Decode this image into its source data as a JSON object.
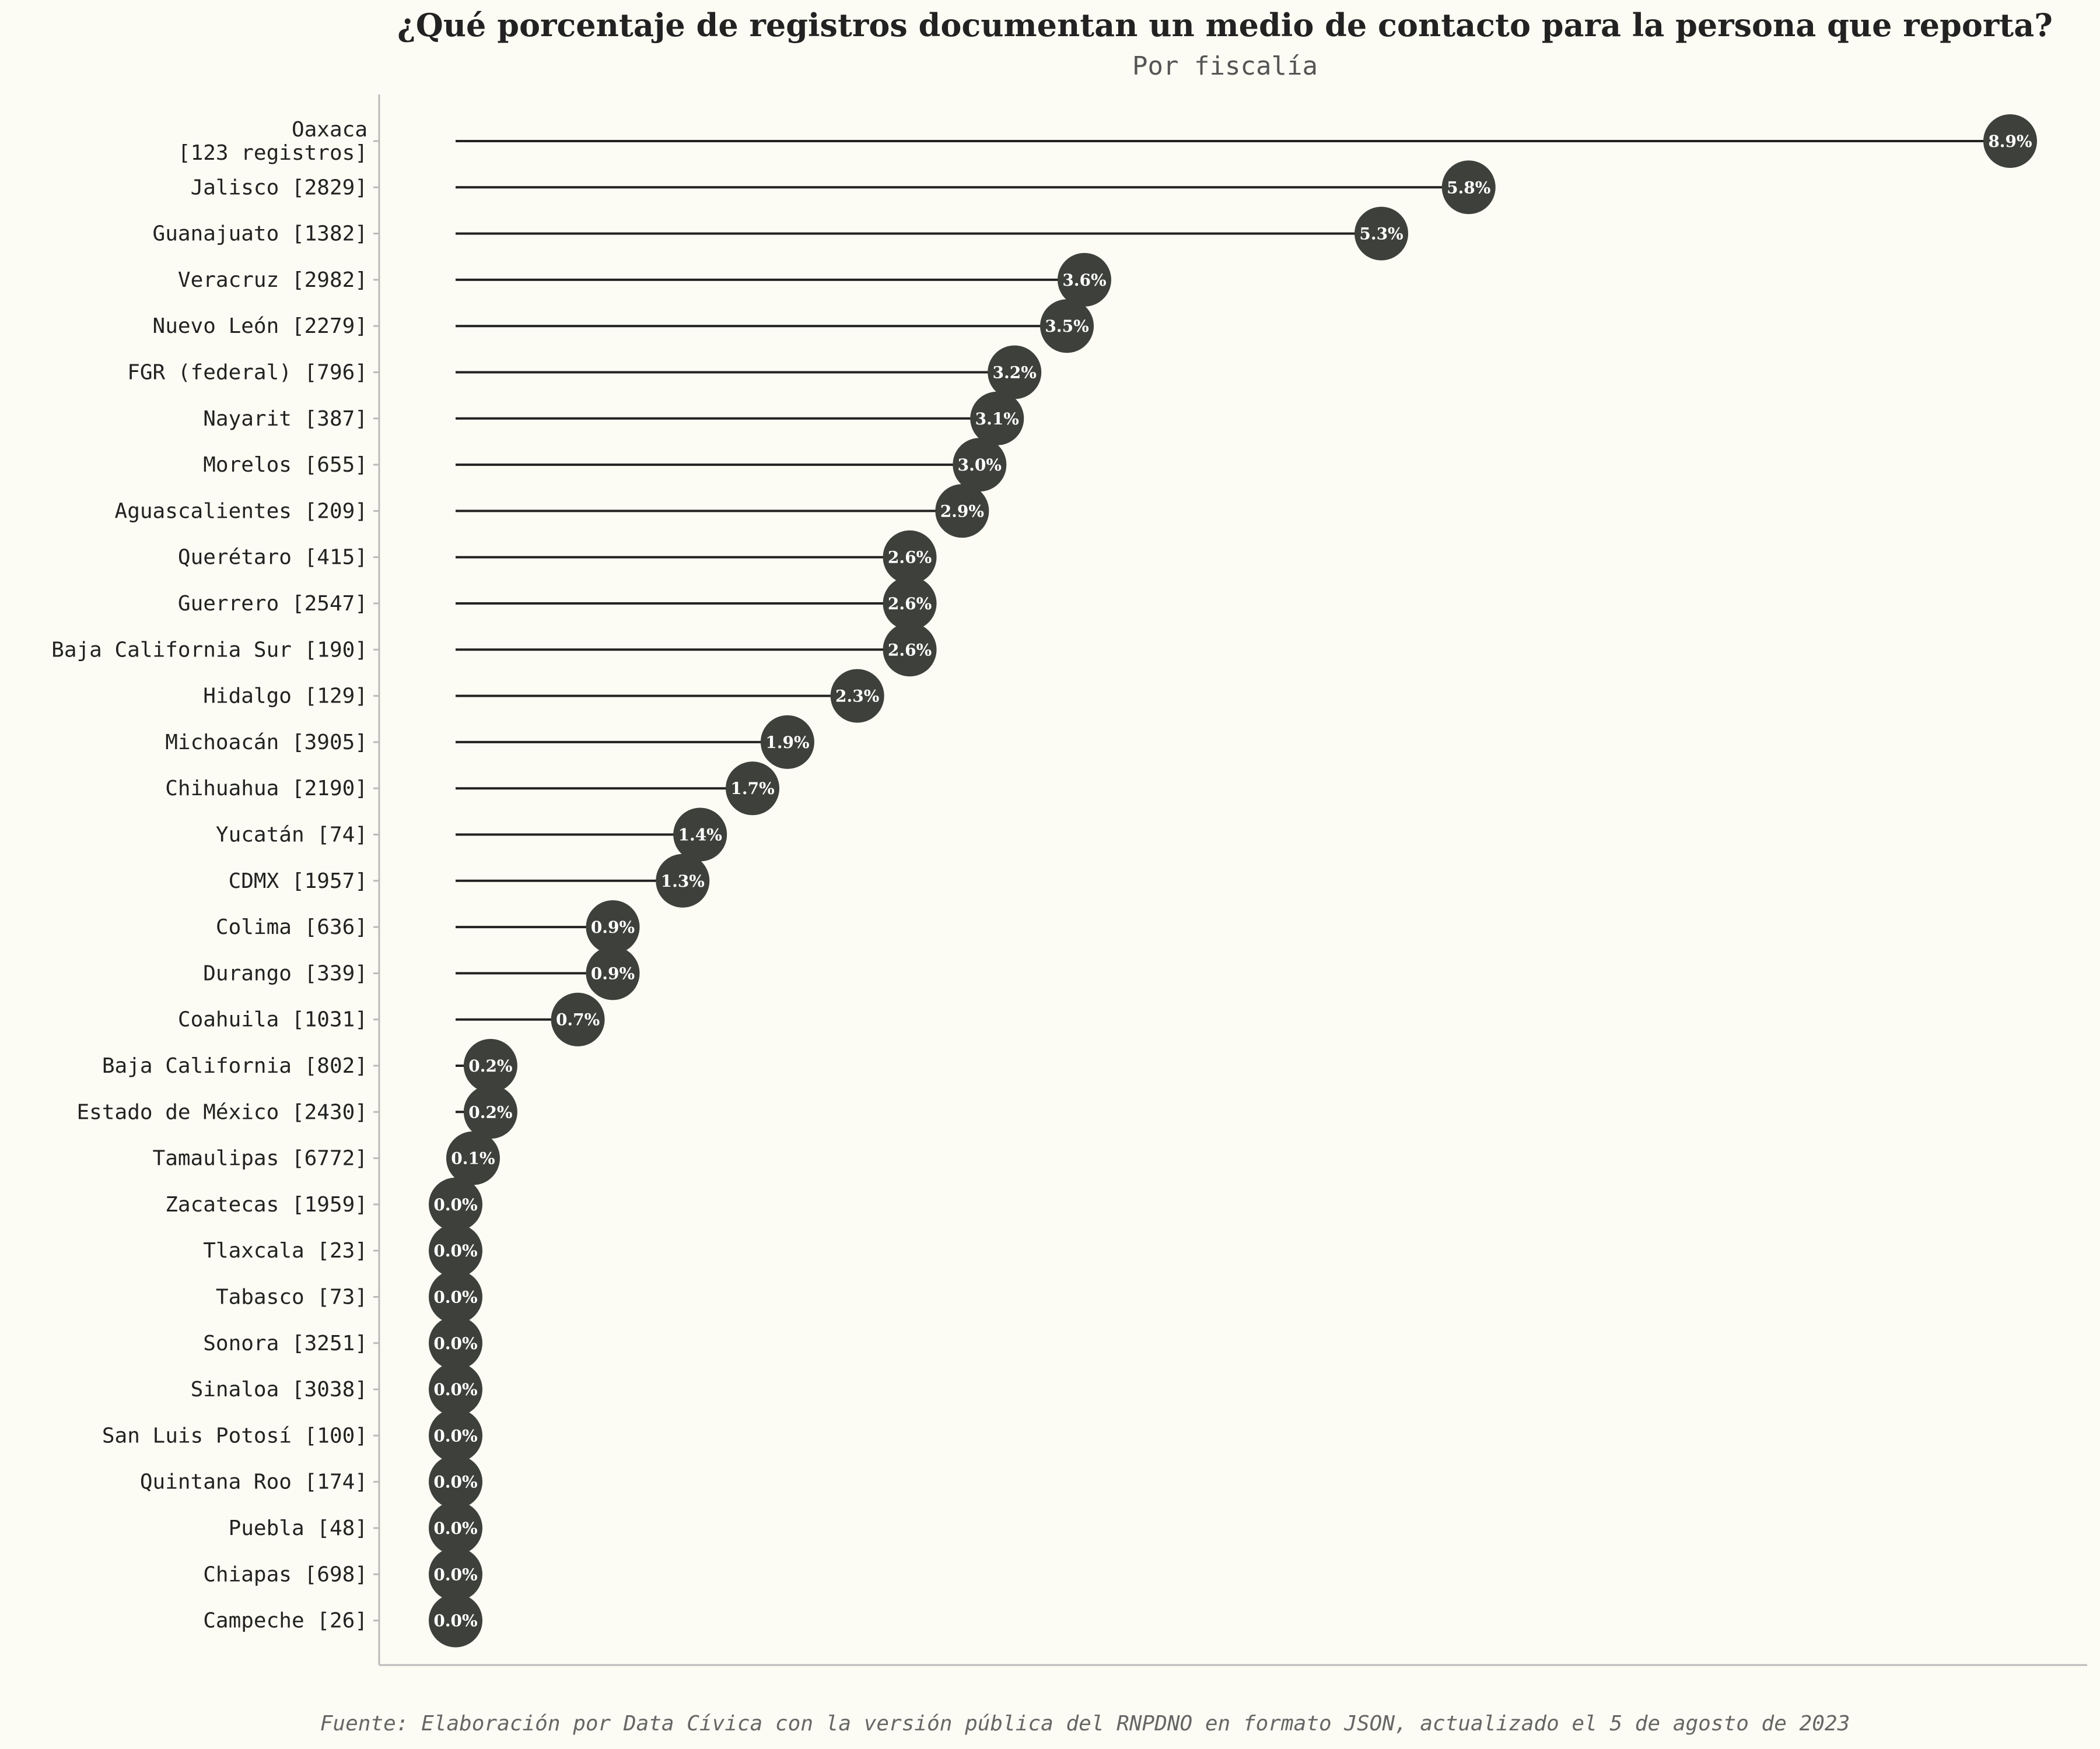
{
  "chart_data": {
    "type": "lollipop",
    "title": "¿Qué porcentaje de registros documentan un medio de contacto para la persona que reporta?",
    "subtitle": "Por fiscalía",
    "caption": "Fuente: Elaboración por Data Cívica con la versión pública del RNPDNO en formato JSON, actualizado el 5 de agosto de 2023",
    "xlim": [
      0,
      8.9
    ],
    "grid": false,
    "colors": {
      "background": "#fcfcf4",
      "marker": "#3e403c",
      "line": "#222222",
      "axis": "#bbbbbb"
    },
    "categories": [
      [
        "Oaxaca",
        "[123 registros]"
      ],
      [
        "Jalisco [2829]"
      ],
      [
        "Guanajuato [1382]"
      ],
      [
        "Veracruz [2982]"
      ],
      [
        "Nuevo León [2279]"
      ],
      [
        "FGR (federal) [796]"
      ],
      [
        "Nayarit [387]"
      ],
      [
        "Morelos [655]"
      ],
      [
        "Aguascalientes [209]"
      ],
      [
        "Querétaro [415]"
      ],
      [
        "Guerrero [2547]"
      ],
      [
        "Baja California Sur [190]"
      ],
      [
        "Hidalgo [129]"
      ],
      [
        "Michoacán [3905]"
      ],
      [
        "Chihuahua [2190]"
      ],
      [
        "Yucatán [74]"
      ],
      [
        "CDMX [1957]"
      ],
      [
        "Colima [636]"
      ],
      [
        "Durango [339]"
      ],
      [
        "Coahuila [1031]"
      ],
      [
        "Baja California [802]"
      ],
      [
        "Estado de México [2430]"
      ],
      [
        "Tamaulipas [6772]"
      ],
      [
        "Zacatecas [1959]"
      ],
      [
        "Tlaxcala [23]"
      ],
      [
        "Tabasco [73]"
      ],
      [
        "Sonora [3251]"
      ],
      [
        "Sinaloa [3038]"
      ],
      [
        "San Luis Potosí [100]"
      ],
      [
        "Quintana Roo [174]"
      ],
      [
        "Puebla [48]"
      ],
      [
        "Chiapas [698]"
      ],
      [
        "Campeche [26]"
      ]
    ],
    "values": [
      8.9,
      5.8,
      5.3,
      3.6,
      3.5,
      3.2,
      3.1,
      3.0,
      2.9,
      2.6,
      2.6,
      2.6,
      2.3,
      1.9,
      1.7,
      1.4,
      1.3,
      0.9,
      0.9,
      0.7,
      0.2,
      0.2,
      0.1,
      0.0,
      0.0,
      0.0,
      0.0,
      0.0,
      0.0,
      0.0,
      0.0,
      0.0,
      0.0
    ],
    "labels": [
      "8.9%",
      "5.8%",
      "5.3%",
      "3.6%",
      "3.5%",
      "3.2%",
      "3.1%",
      "3.0%",
      "2.9%",
      "2.6%",
      "2.6%",
      "2.6%",
      "2.3%",
      "1.9%",
      "1.7%",
      "1.4%",
      "1.3%",
      "0.9%",
      "0.9%",
      "0.7%",
      "0.2%",
      "0.2%",
      "0.1%",
      "0.0%",
      "0.0%",
      "0.0%",
      "0.0%",
      "0.0%",
      "0.0%",
      "0.0%",
      "0.0%",
      "0.0%",
      "0.0%"
    ]
  }
}
